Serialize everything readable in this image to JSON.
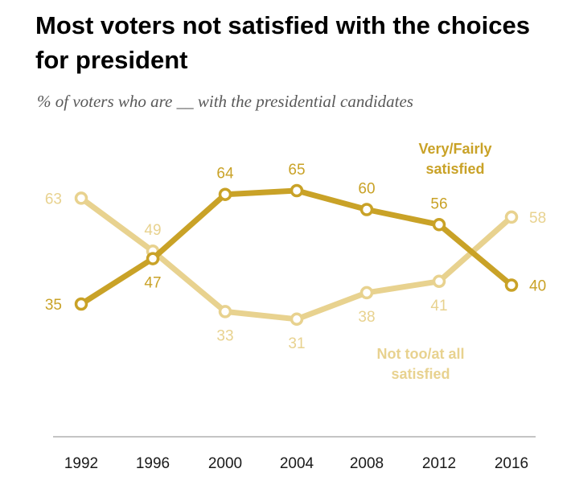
{
  "title": "Most voters not satisfied with the choices for president",
  "subtitle": "% of voters who are __ with the presidential candidates",
  "chart_data": {
    "type": "line",
    "title": "Most voters not satisfied with the choices for president",
    "subtitle": "% of voters who are __ with the presidential candidates",
    "x": [
      "1992",
      "1996",
      "2000",
      "2004",
      "2008",
      "2012",
      "2016"
    ],
    "series": [
      {
        "name": "Very/Fairly satisfied",
        "label_lines": [
          "Very/Fairly",
          "satisfied"
        ],
        "values": [
          35,
          47,
          64,
          65,
          60,
          56,
          40
        ],
        "color": "#c9a227"
      },
      {
        "name": "Not too/at all satisfied",
        "label_lines": [
          "Not too/at all",
          "satisfied"
        ],
        "values": [
          63,
          49,
          33,
          31,
          38,
          41,
          58
        ],
        "color": "#e8d28f"
      }
    ],
    "ylim": [
      20,
      75
    ],
    "grid": false,
    "legend": "inline labels"
  }
}
